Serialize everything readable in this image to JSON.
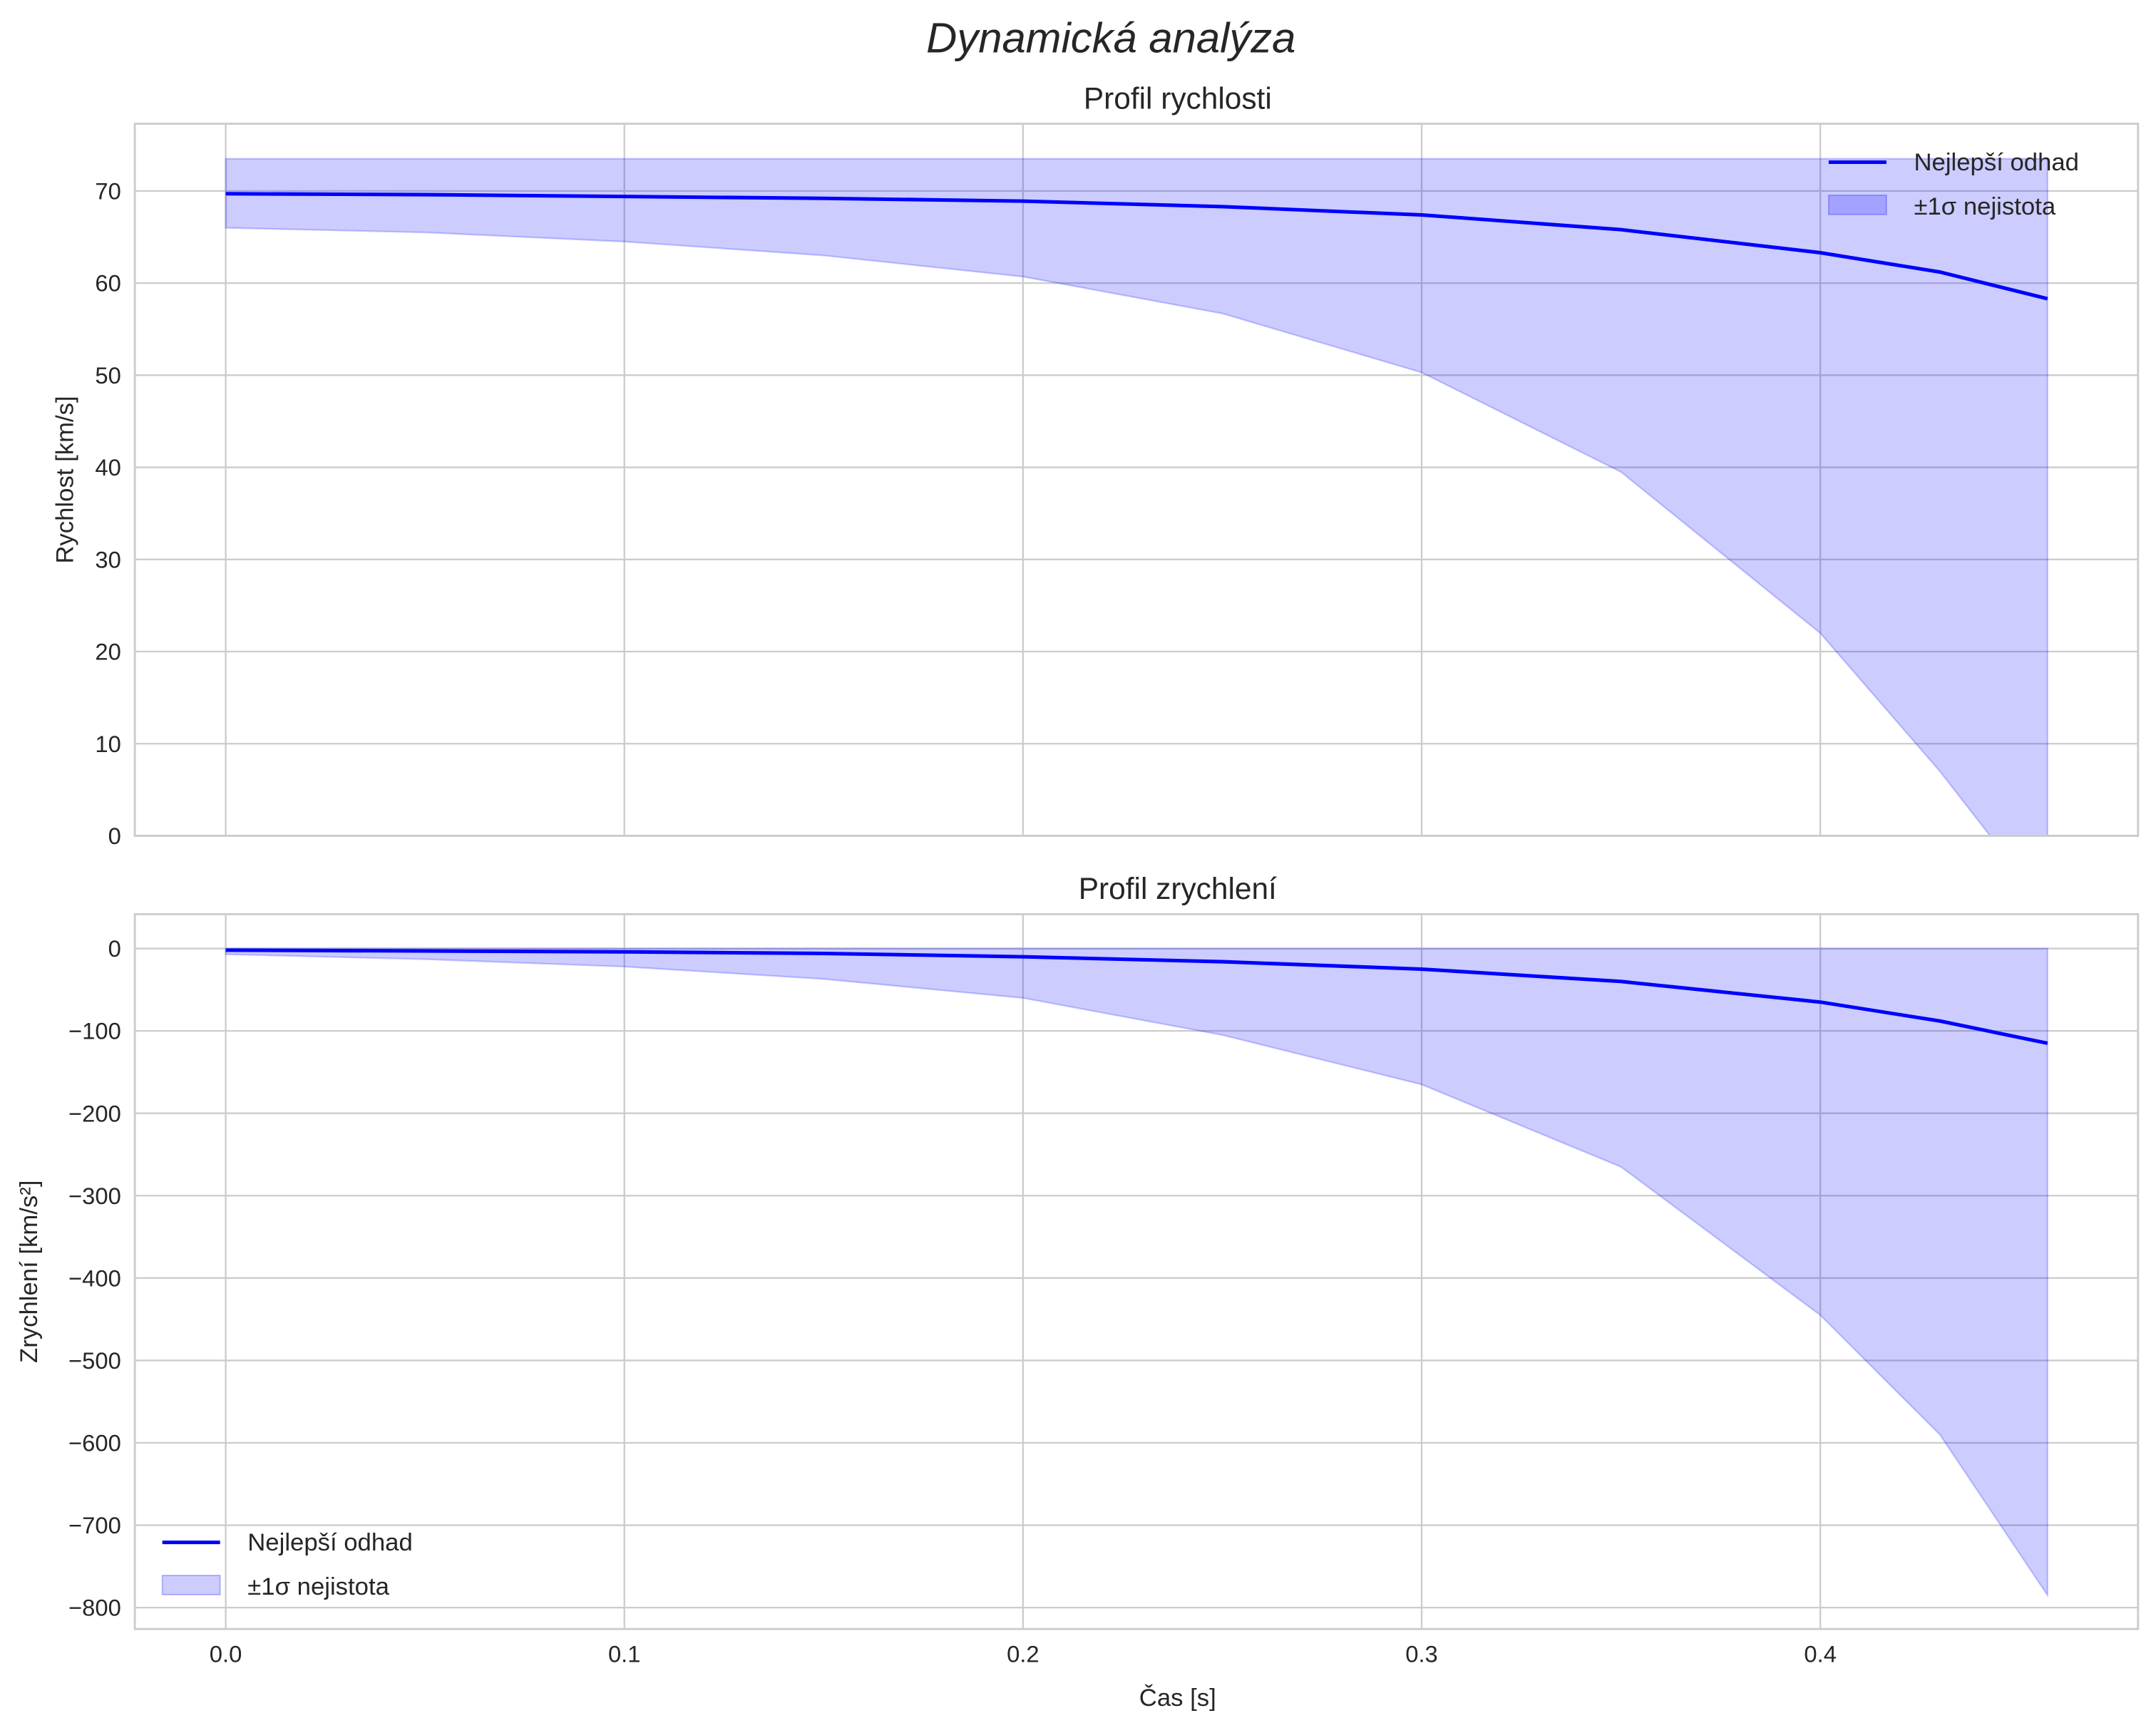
{
  "title": "Dynamická analýza",
  "chart_data": [
    {
      "type": "line",
      "title": "Profil rychlosti",
      "xlabel": "",
      "ylabel": "Rychlost [km/s]",
      "xlim": [
        -0.0228,
        0.4797
      ],
      "ylim": [
        0,
        77.3
      ],
      "xticks": [
        0.0,
        0.1,
        0.2,
        0.3,
        0.4
      ],
      "xtick_labels": [
        "",
        "",
        "",
        "",
        ""
      ],
      "yticks": [
        0,
        10,
        20,
        30,
        40,
        50,
        60,
        70
      ],
      "ytick_labels": [
        "0",
        "10",
        "20",
        "30",
        "40",
        "50",
        "60",
        "70"
      ],
      "grid": true,
      "legend_position": "top-right",
      "x": [
        0,
        0.05,
        0.1,
        0.15,
        0.2,
        0.25,
        0.3,
        0.35,
        0.4,
        0.43,
        0.457
      ],
      "series": [
        {
          "name": "Nejlepší odhad",
          "kind": "line",
          "color": "#0000ff",
          "values": [
            69.7,
            69.6,
            69.4,
            69.2,
            68.9,
            68.3,
            67.4,
            65.8,
            63.3,
            61.2,
            58.3
          ]
        },
        {
          "name": "±1σ nejistota",
          "kind": "band",
          "color": "#0000ff",
          "lower": [
            66.0,
            65.5,
            64.5,
            63.0,
            60.7,
            56.7,
            50.3,
            39.5,
            22.0,
            7.0,
            -8.0
          ],
          "upper": [
            73.5,
            73.5,
            73.5,
            73.5,
            73.5,
            73.5,
            73.5,
            73.5,
            73.5,
            73.5,
            73.5
          ]
        }
      ]
    },
    {
      "type": "line",
      "title": "Profil zrychlení",
      "xlabel": "Čas [s]",
      "ylabel": "Zrychlení [km/s²]",
      "xlim": [
        -0.0228,
        0.4797
      ],
      "ylim": [
        -826,
        41.7
      ],
      "xticks": [
        0.0,
        0.1,
        0.2,
        0.3,
        0.4
      ],
      "xtick_labels": [
        "0.0",
        "0.1",
        "0.2",
        "0.3",
        "0.4"
      ],
      "yticks": [
        0,
        -100,
        -200,
        -300,
        -400,
        -500,
        -600,
        -700,
        -800
      ],
      "ytick_labels": [
        "0",
        "−100",
        "−200",
        "−300",
        "−400",
        "−500",
        "−600",
        "−700",
        "−800"
      ],
      "grid": true,
      "legend_position": "lower-left",
      "x": [
        0,
        0.05,
        0.1,
        0.15,
        0.2,
        0.25,
        0.3,
        0.35,
        0.4,
        0.43,
        0.457
      ],
      "series": [
        {
          "name": "Nejlepší odhad",
          "kind": "line",
          "color": "#0000ff",
          "values": [
            -2,
            -3,
            -4,
            -6,
            -10,
            -16,
            -25,
            -40,
            -65,
            -88,
            -115
          ]
        },
        {
          "name": "±1σ nejistota",
          "kind": "band",
          "color": "#0000ff",
          "lower": [
            -7,
            -13,
            -22,
            -37,
            -60,
            -105,
            -165,
            -265,
            -445,
            -590,
            -785
          ],
          "upper": [
            0,
            0,
            0,
            0,
            0,
            0,
            0,
            0,
            0,
            0,
            0
          ]
        }
      ]
    }
  ]
}
